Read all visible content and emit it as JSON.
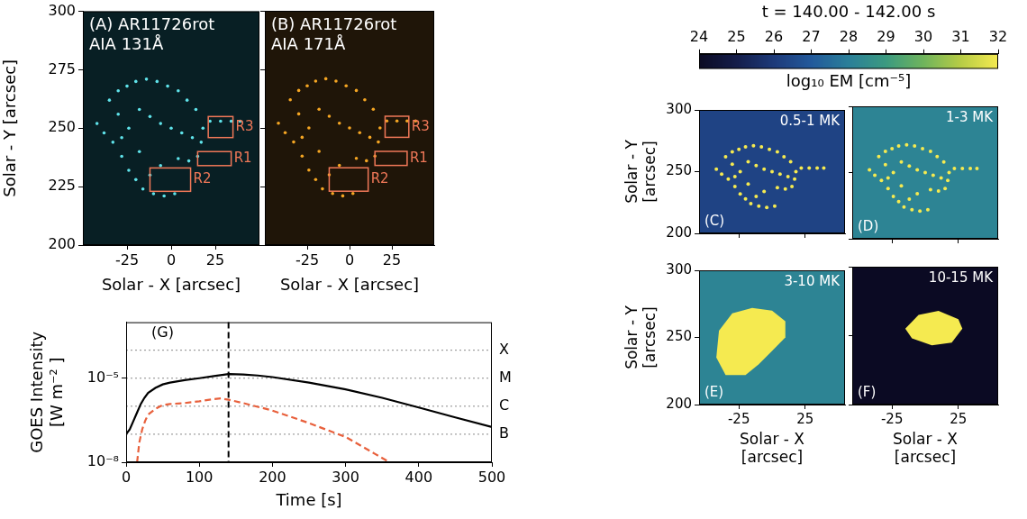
{
  "chart_data": [
    {
      "type": "image",
      "title": [
        "(A) AR11726rot",
        "AIA 131Å"
      ],
      "color": "#5fe3ea",
      "x_label": "Solar - X [arcsec]",
      "y_label": "Solar - Y [arcsec]",
      "xlim": [
        -50,
        50
      ],
      "ylim": [
        200,
        300
      ],
      "xticks": [
        -25,
        0,
        25
      ],
      "yticks": [
        200,
        225,
        250,
        275,
        300
      ],
      "points": {
        "x": [
          -35,
          -30,
          -25,
          -20,
          -14,
          -8,
          -2,
          4,
          9,
          -42,
          -38,
          -33,
          -28,
          -24,
          -30,
          -18,
          -12,
          -6,
          0,
          6,
          12,
          18,
          22,
          28,
          34,
          39,
          14,
          17,
          15,
          10,
          4,
          -28,
          -24,
          -20,
          -16,
          -10,
          -4,
          2,
          -12,
          -6,
          -18
        ],
        "y": [
          262,
          266,
          268,
          270,
          271,
          270,
          268,
          266,
          262,
          252,
          248,
          244,
          246,
          250,
          256,
          258,
          255,
          252,
          250,
          248,
          246,
          250,
          253,
          253,
          253,
          253,
          258,
          244,
          238,
          236,
          237,
          238,
          232,
          228,
          224,
          222,
          221,
          222,
          230,
          234,
          240
        ]
      },
      "regions": [
        {
          "name": "R3",
          "x": [
            21,
            35
          ],
          "y": [
            246,
            255
          ]
        },
        {
          "name": "R1",
          "x": [
            15,
            34
          ],
          "y": [
            234,
            240
          ]
        },
        {
          "name": "R2",
          "x": [
            -12,
            11
          ],
          "y": [
            223,
            233
          ]
        }
      ]
    },
    {
      "type": "image",
      "title": [
        "(B) AR11726rot",
        "AIA 171Å"
      ],
      "color": "#f5a623",
      "tick_labels": "x",
      "x_label": "Solar - X [arcsec]",
      "xlim": [
        -50,
        50
      ],
      "ylim": [
        200,
        300
      ],
      "xticks": [
        -25,
        0,
        25
      ],
      "yticks": [
        200,
        225,
        250,
        275,
        300
      ],
      "points": {
        "x": [
          -35,
          -30,
          -25,
          -20,
          -14,
          -8,
          -2,
          4,
          9,
          -42,
          -38,
          -33,
          -28,
          -24,
          -30,
          -18,
          -12,
          -6,
          0,
          6,
          12,
          18,
          22,
          28,
          34,
          39,
          14,
          17,
          15,
          10,
          4,
          -28,
          -24,
          -20,
          -16,
          -10,
          -4,
          2,
          -12,
          -6,
          -18
        ],
        "y": [
          262,
          266,
          268,
          270,
          271,
          270,
          268,
          266,
          262,
          252,
          248,
          244,
          246,
          250,
          256,
          258,
          255,
          252,
          250,
          248,
          246,
          250,
          253,
          253,
          253,
          253,
          258,
          244,
          238,
          236,
          237,
          238,
          232,
          228,
          224,
          222,
          221,
          222,
          230,
          234,
          240
        ]
      },
      "regions": [
        {
          "name": "R3",
          "x": [
            21,
            35
          ],
          "y": [
            246,
            255
          ]
        },
        {
          "name": "R1",
          "x": [
            15,
            34
          ],
          "y": [
            234,
            240
          ]
        },
        {
          "name": "R2",
          "x": [
            -12,
            11
          ],
          "y": [
            223,
            233
          ]
        }
      ]
    },
    {
      "type": "line",
      "panel": "(G)",
      "log": "y",
      "x_label": "Time [s]",
      "y_label": [
        "GOES Intensity",
        "[W m⁻² ]"
      ],
      "xlim": [
        0,
        500
      ],
      "ylim": [
        1e-08,
        0.001
      ],
      "xticks": [
        0,
        100,
        200,
        300,
        400,
        500
      ],
      "yticks": [
        {
          "value": 1e-08,
          "label": "10⁻⁸"
        },
        {
          "value": 1e-05,
          "label": "10⁻⁵"
        }
      ],
      "class_lines": [
        {
          "label": "X",
          "value": 0.0001
        },
        {
          "label": "M",
          "value": 1e-05
        },
        {
          "label": "C",
          "value": 1e-06
        },
        {
          "label": "B",
          "value": 1e-07
        }
      ],
      "current_time": 140,
      "series": [
        {
          "color": "#000000",
          "line_style": "solid",
          "x": [
            0,
            5,
            10,
            15,
            20,
            25,
            30,
            40,
            50,
            60,
            80,
            100,
            120,
            140,
            160,
            180,
            200,
            250,
            300,
            350,
            400,
            450,
            500
          ],
          "values": [
            1e-07,
            1.5e-07,
            3e-07,
            6e-07,
            1.2e-06,
            2e-06,
            3e-06,
            4.5e-06,
            6e-06,
            7e-06,
            8.5e-06,
            1e-05,
            1.2e-05,
            1.4e-05,
            1.35e-05,
            1.25e-05,
            1.1e-05,
            7e-06,
            4e-06,
            2e-06,
            9e-07,
            4e-07,
            1.8e-07
          ]
        },
        {
          "color": "#e8603c",
          "line_style": "dashed",
          "x": [
            15,
            18,
            22,
            26,
            30,
            40,
            50,
            60,
            80,
            100,
            120,
            130,
            140,
            160,
            200,
            250,
            300,
            340,
            360
          ],
          "values": [
            1e-08,
            5e-08,
            1.5e-07,
            3e-07,
            5e-07,
            8e-07,
            1.1e-06,
            1.2e-06,
            1.3e-06,
            1.5e-06,
            1.8e-06,
            1.9e-06,
            1.7e-06,
            1.3e-06,
            7e-07,
            2.5e-07,
            8e-08,
            2e-08,
            1e-08
          ]
        }
      ]
    },
    {
      "type": "colorbar",
      "title": "t = 140.00 - 142.00 s",
      "label": "log₁₀ EM [cm⁻⁵]",
      "clim": [
        24,
        32
      ],
      "cticks": [
        24,
        25,
        26,
        27,
        28,
        29,
        30,
        31,
        32
      ]
    },
    {
      "type": "em_map",
      "title": "0.5-1 MK",
      "panel": "(C)",
      "tick_labels": "y",
      "y_label": [
        "Solar - Y",
        "[arcsec]"
      ],
      "xlim": [
        -55,
        55
      ],
      "ylim": [
        200,
        300
      ],
      "xticks": [
        -25,
        25
      ],
      "yticks": [
        200,
        250,
        300
      ],
      "background_log_em": 26.3,
      "points": {
        "log_em": 32,
        "x": [
          -35,
          -30,
          -25,
          -20,
          -14,
          -8,
          -2,
          4,
          9,
          -42,
          -38,
          -33,
          -28,
          -24,
          -30,
          -18,
          -12,
          -6,
          0,
          6,
          12,
          18,
          22,
          28,
          34,
          39,
          14,
          17,
          15,
          10,
          4,
          -28,
          -24,
          -20,
          -16,
          -10,
          -4,
          2,
          -12,
          -6,
          -18
        ],
        "y": [
          262,
          266,
          268,
          270,
          271,
          270,
          268,
          266,
          262,
          252,
          248,
          244,
          246,
          250,
          256,
          258,
          255,
          252,
          250,
          248,
          246,
          250,
          253,
          253,
          253,
          253,
          258,
          244,
          238,
          236,
          237,
          238,
          232,
          228,
          224,
          222,
          221,
          222,
          230,
          234,
          240
        ]
      }
    },
    {
      "type": "em_map",
      "title": "1-3 MK",
      "panel": "(D)",
      "tick_labels": false,
      "xlim": [
        -55,
        55
      ],
      "ylim": [
        200,
        300
      ],
      "xticks": [
        -25,
        25
      ],
      "yticks": [
        200,
        250,
        300
      ],
      "background_log_em": 28.2,
      "points": {
        "log_em": 32,
        "x": [
          -35,
          -30,
          -25,
          -20,
          -14,
          -8,
          -2,
          4,
          9,
          -42,
          -38,
          -33,
          -28,
          -24,
          -30,
          -18,
          -12,
          -6,
          0,
          6,
          12,
          18,
          22,
          28,
          34,
          39,
          14,
          17,
          15,
          10,
          4,
          -28,
          -24,
          -20,
          -16,
          -10,
          -4,
          2,
          -12,
          -6,
          -18
        ],
        "y": [
          262,
          266,
          268,
          270,
          271,
          270,
          268,
          266,
          262,
          252,
          248,
          244,
          246,
          250,
          256,
          258,
          255,
          252,
          250,
          248,
          246,
          250,
          253,
          253,
          253,
          253,
          258,
          244,
          238,
          236,
          237,
          238,
          232,
          228,
          224,
          222,
          221,
          222,
          230,
          234,
          240
        ]
      }
    },
    {
      "type": "em_map",
      "title": "3-10 MK",
      "panel": "(E)",
      "x_label": [
        "Solar - X",
        "[arcsec]"
      ],
      "y_label": [
        "Solar - Y",
        "[arcsec]"
      ],
      "xlim": [
        -55,
        55
      ],
      "ylim": [
        200,
        300
      ],
      "xticks": [
        -25,
        25
      ],
      "yticks": [
        200,
        250,
        300
      ],
      "background_log_em": 28.2,
      "region": {
        "log_em": 32,
        "x": [
          -40,
          -30,
          -15,
          0,
          10,
          10,
          0,
          -10,
          -20,
          -35,
          -42
        ],
        "y": [
          255,
          268,
          272,
          270,
          262,
          250,
          240,
          230,
          222,
          222,
          235
        ]
      }
    },
    {
      "type": "em_map",
      "title": "10-15 MK",
      "panel": "(F)",
      "tick_labels": "x",
      "x_label": [
        "Solar - X",
        "[arcsec]"
      ],
      "xlim": [
        -55,
        55
      ],
      "ylim": [
        200,
        300
      ],
      "xticks": [
        -25,
        25
      ],
      "yticks": [
        200,
        250,
        300
      ],
      "background_log_em": 24,
      "region": {
        "log_em": 32,
        "x": [
          -15,
          -5,
          10,
          25,
          28,
          20,
          5,
          -10
        ],
        "y": [
          255,
          265,
          268,
          262,
          255,
          245,
          243,
          248
        ]
      }
    }
  ]
}
